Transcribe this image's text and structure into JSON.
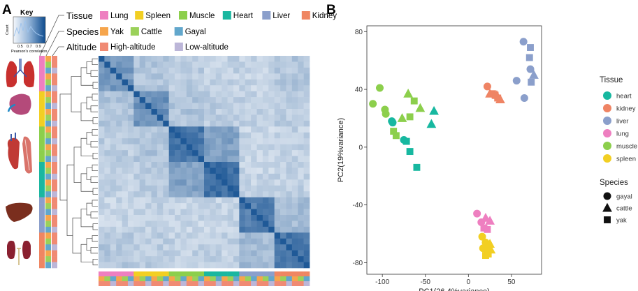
{
  "panel_a": {
    "letter": "A",
    "key": {
      "title": "Key",
      "ylabel": "Count",
      "xlabel": "Pearson's correlation",
      "ticks": [
        "0.5",
        "0.7",
        "0.9"
      ]
    },
    "legend_rows": [
      {
        "label": "Tissue",
        "items": [
          {
            "name": "Lung",
            "color": "#ee7fc0"
          },
          {
            "name": "Spleen",
            "color": "#f2cf23"
          },
          {
            "name": "Muscle",
            "color": "#8ccf4c"
          },
          {
            "name": "Heart",
            "color": "#1ab7a0"
          },
          {
            "name": "Liver",
            "color": "#8b9fcb"
          },
          {
            "name": "Kidney",
            "color": "#ef8662"
          }
        ]
      },
      {
        "label": "Species",
        "items": [
          {
            "name": "Yak",
            "color": "#f6a54c"
          },
          {
            "name": "Cattle",
            "color": "#9bd15a"
          },
          {
            "name": "Gayal",
            "color": "#62a7cc"
          }
        ]
      },
      {
        "label": "Altitude",
        "items": [
          {
            "name": "High-altitude",
            "color": "#f08a73"
          },
          {
            "name": "Low-altitude",
            "color": "#bcb6d8"
          }
        ]
      }
    ],
    "organ_icons": [
      "lungs-icon",
      "spleen-icon",
      "heart-muscle-icon",
      "liver-icon",
      "kidney-icon"
    ]
  },
  "panel_b": {
    "letter": "B"
  },
  "chart_data": [
    {
      "type": "heatmap",
      "title": "",
      "row_order_tissues": [
        "lung",
        "lung",
        "lung",
        "lung",
        "lung",
        "lung",
        "spleen",
        "spleen",
        "spleen",
        "spleen",
        "spleen",
        "spleen",
        "muscle",
        "muscle",
        "muscle",
        "muscle",
        "muscle",
        "muscle",
        "heart",
        "heart",
        "heart",
        "heart",
        "heart",
        "heart",
        "liver",
        "liver",
        "liver",
        "liver",
        "liver",
        "liver",
        "kidney",
        "kidney",
        "kidney",
        "kidney",
        "kidney",
        "kidney"
      ],
      "block_similarity": [
        [
          0.55,
          0.3,
          0.25,
          0.22,
          0.2,
          0.28
        ],
        [
          0.3,
          0.6,
          0.3,
          0.25,
          0.22,
          0.25
        ],
        [
          0.25,
          0.3,
          0.75,
          0.5,
          0.2,
          0.22
        ],
        [
          0.22,
          0.25,
          0.5,
          0.8,
          0.2,
          0.22
        ],
        [
          0.2,
          0.22,
          0.2,
          0.2,
          0.7,
          0.35
        ],
        [
          0.28,
          0.25,
          0.22,
          0.22,
          0.35,
          0.75
        ]
      ],
      "value_range": [
        0.5,
        1.0
      ]
    },
    {
      "type": "scatter",
      "title": "",
      "xlabel": "PC1(26.4%variance)",
      "ylabel": "PC2(19%variance)",
      "xlim": [
        -118,
        85
      ],
      "ylim": [
        -88,
        84
      ],
      "xticks": [
        -100,
        -50,
        0,
        50
      ],
      "yticks": [
        80,
        40,
        0,
        -40,
        -80
      ],
      "legend_tissue_title": "Tissue",
      "legend_species_title": "Species",
      "tissues": [
        {
          "name": "heart",
          "color": "#17b8a0"
        },
        {
          "name": "kidney",
          "color": "#ef8464"
        },
        {
          "name": "liver",
          "color": "#8b9fcb"
        },
        {
          "name": "lung",
          "color": "#ee7fc0"
        },
        {
          "name": "muscle",
          "color": "#8ccf4c"
        },
        {
          "name": "spleen",
          "color": "#f2cf23"
        }
      ],
      "species": [
        {
          "name": "gayal",
          "shape": "circle"
        },
        {
          "name": "cattle",
          "shape": "triangle"
        },
        {
          "name": "yak",
          "shape": "square"
        }
      ],
      "points": [
        {
          "x": -103,
          "y": 41,
          "tissue": "muscle",
          "species": "gayal"
        },
        {
          "x": -111,
          "y": 30,
          "tissue": "muscle",
          "species": "gayal"
        },
        {
          "x": -97,
          "y": 26,
          "tissue": "muscle",
          "species": "gayal"
        },
        {
          "x": -96,
          "y": 23,
          "tissue": "muscle",
          "species": "gayal"
        },
        {
          "x": -70,
          "y": 37,
          "tissue": "muscle",
          "species": "cattle"
        },
        {
          "x": -77,
          "y": 20,
          "tissue": "muscle",
          "species": "cattle"
        },
        {
          "x": -56,
          "y": 27,
          "tissue": "muscle",
          "species": "cattle"
        },
        {
          "x": -63,
          "y": 32,
          "tissue": "muscle",
          "species": "yak"
        },
        {
          "x": -68,
          "y": 21,
          "tissue": "muscle",
          "species": "yak"
        },
        {
          "x": -87,
          "y": 11,
          "tissue": "muscle",
          "species": "yak"
        },
        {
          "x": -84,
          "y": 8,
          "tissue": "muscle",
          "species": "yak"
        },
        {
          "x": -89,
          "y": 18,
          "tissue": "heart",
          "species": "gayal"
        },
        {
          "x": -88,
          "y": 17,
          "tissue": "heart",
          "species": "gayal"
        },
        {
          "x": -75,
          "y": 5,
          "tissue": "heart",
          "species": "gayal"
        },
        {
          "x": -40,
          "y": 25,
          "tissue": "heart",
          "species": "cattle"
        },
        {
          "x": -43,
          "y": 16,
          "tissue": "heart",
          "species": "cattle"
        },
        {
          "x": -72,
          "y": 4,
          "tissue": "heart",
          "species": "yak"
        },
        {
          "x": -68,
          "y": -3,
          "tissue": "heart",
          "species": "yak"
        },
        {
          "x": -60,
          "y": -14,
          "tissue": "heart",
          "species": "yak"
        },
        {
          "x": 22,
          "y": 42,
          "tissue": "kidney",
          "species": "gayal"
        },
        {
          "x": 25,
          "y": 37,
          "tissue": "kidney",
          "species": "cattle"
        },
        {
          "x": 33,
          "y": 36,
          "tissue": "kidney",
          "species": "cattle"
        },
        {
          "x": 37,
          "y": 33,
          "tissue": "kidney",
          "species": "cattle"
        },
        {
          "x": 28,
          "y": 37,
          "tissue": "kidney",
          "species": "yak"
        },
        {
          "x": 34,
          "y": 34,
          "tissue": "kidney",
          "species": "yak"
        },
        {
          "x": 31,
          "y": 36,
          "tissue": "kidney",
          "species": "yak"
        },
        {
          "x": 64,
          "y": 73,
          "tissue": "liver",
          "species": "gayal"
        },
        {
          "x": 56,
          "y": 46,
          "tissue": "liver",
          "species": "gayal"
        },
        {
          "x": 65,
          "y": 34,
          "tissue": "liver",
          "species": "gayal"
        },
        {
          "x": 72,
          "y": 54,
          "tissue": "liver",
          "species": "gayal"
        },
        {
          "x": 76,
          "y": 50,
          "tissue": "liver",
          "species": "cattle"
        },
        {
          "x": 72,
          "y": 69,
          "tissue": "liver",
          "species": "yak"
        },
        {
          "x": 71,
          "y": 62,
          "tissue": "liver",
          "species": "yak"
        },
        {
          "x": 73,
          "y": 45,
          "tissue": "liver",
          "species": "yak"
        },
        {
          "x": 10,
          "y": -46,
          "tissue": "lung",
          "species": "gayal"
        },
        {
          "x": 15,
          "y": -52,
          "tissue": "lung",
          "species": "gayal"
        },
        {
          "x": 20,
          "y": -49,
          "tissue": "lung",
          "species": "cattle"
        },
        {
          "x": 25,
          "y": -51,
          "tissue": "lung",
          "species": "cattle"
        },
        {
          "x": 18,
          "y": -56,
          "tissue": "lung",
          "species": "yak"
        },
        {
          "x": 22,
          "y": -57,
          "tissue": "lung",
          "species": "yak"
        },
        {
          "x": 16,
          "y": -62,
          "tissue": "spleen",
          "species": "gayal"
        },
        {
          "x": 20,
          "y": -66,
          "tissue": "spleen",
          "species": "gayal"
        },
        {
          "x": 17,
          "y": -70,
          "tissue": "spleen",
          "species": "gayal"
        },
        {
          "x": 25,
          "y": -67,
          "tissue": "spleen",
          "species": "cattle"
        },
        {
          "x": 26,
          "y": -71,
          "tissue": "spleen",
          "species": "cattle"
        },
        {
          "x": 22,
          "y": -72,
          "tissue": "spleen",
          "species": "yak"
        },
        {
          "x": 20,
          "y": -75,
          "tissue": "spleen",
          "species": "yak"
        },
        {
          "x": 23,
          "y": -74,
          "tissue": "spleen",
          "species": "yak"
        }
      ]
    }
  ]
}
